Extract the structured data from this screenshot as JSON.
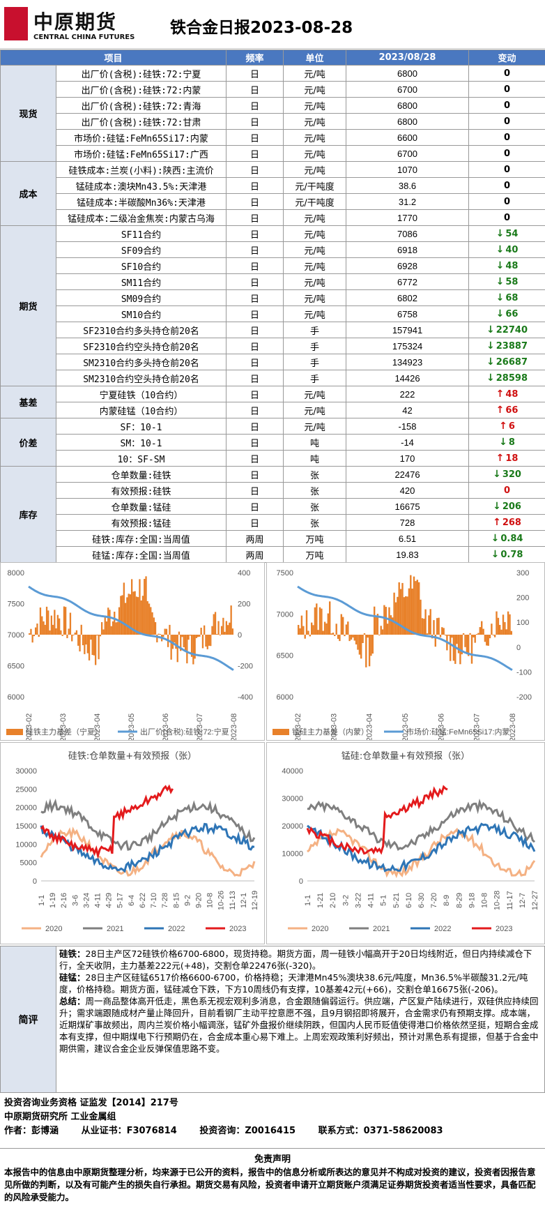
{
  "header": {
    "logo_cn": "中原期货",
    "logo_en": "CENTRAL CHINA FUTURES",
    "title": "铁合金日报2023-08-28"
  },
  "table": {
    "columns": [
      "项目",
      "频率",
      "单位",
      "2023/08/28",
      "变动"
    ],
    "sections": [
      {
        "category": "现货",
        "rows": [
          {
            "item": "出厂价(含税):硅铁:72:宁夏",
            "freq": "日",
            "unit": "元/吨",
            "value": "6800",
            "change": "0",
            "dir": ""
          },
          {
            "item": "出厂价(含税):硅铁:72:内蒙",
            "freq": "日",
            "unit": "元/吨",
            "value": "6700",
            "change": "0",
            "dir": ""
          },
          {
            "item": "出厂价(含税):硅铁:72:青海",
            "freq": "日",
            "unit": "元/吨",
            "value": "6800",
            "change": "0",
            "dir": ""
          },
          {
            "item": "出厂价(含税):硅铁:72:甘肃",
            "freq": "日",
            "unit": "元/吨",
            "value": "6800",
            "change": "0",
            "dir": ""
          },
          {
            "item": "市场价:硅锰:FeMn65Si17:内蒙",
            "freq": "日",
            "unit": "元/吨",
            "value": "6600",
            "change": "0",
            "dir": ""
          },
          {
            "item": "市场价:硅锰:FeMn65Si17:广西",
            "freq": "日",
            "unit": "元/吨",
            "value": "6700",
            "change": "0",
            "dir": ""
          }
        ]
      },
      {
        "category": "成本",
        "rows": [
          {
            "item": "硅铁成本:兰炭(小料):陕西:主流价",
            "freq": "日",
            "unit": "元/吨",
            "value": "1070",
            "change": "0",
            "dir": ""
          },
          {
            "item": "锰硅成本:澳块Mn43.5%:天津港",
            "freq": "日",
            "unit": "元/干吨度",
            "value": "38.6",
            "change": "0",
            "dir": ""
          },
          {
            "item": "锰硅成本:半碳酸Mn36%:天津港",
            "freq": "日",
            "unit": "元/干吨度",
            "value": "31.2",
            "change": "0",
            "dir": ""
          },
          {
            "item": "锰硅成本:二级冶金焦炭:内蒙古乌海",
            "freq": "日",
            "unit": "元/吨",
            "value": "1770",
            "change": "0",
            "dir": ""
          }
        ]
      },
      {
        "category": "期货",
        "rows": [
          {
            "item": "SF11合约",
            "freq": "日",
            "unit": "元/吨",
            "value": "7086",
            "change": "54",
            "dir": "down"
          },
          {
            "item": "SF09合约",
            "freq": "日",
            "unit": "元/吨",
            "value": "6918",
            "change": "40",
            "dir": "down"
          },
          {
            "item": "SF10合约",
            "freq": "日",
            "unit": "元/吨",
            "value": "6928",
            "change": "48",
            "dir": "down"
          },
          {
            "item": "SM11合约",
            "freq": "日",
            "unit": "元/吨",
            "value": "6772",
            "change": "58",
            "dir": "down"
          },
          {
            "item": "SM09合约",
            "freq": "日",
            "unit": "元/吨",
            "value": "6802",
            "change": "68",
            "dir": "down"
          },
          {
            "item": "SM10合约",
            "freq": "日",
            "unit": "元/吨",
            "value": "6758",
            "change": "66",
            "dir": "down"
          },
          {
            "item": "SF2310合约多头持仓前20名",
            "freq": "日",
            "unit": "手",
            "value": "157941",
            "change": "22740",
            "dir": "down"
          },
          {
            "item": "SF2310合约空头持仓前20名",
            "freq": "日",
            "unit": "手",
            "value": "175324",
            "change": "23887",
            "dir": "down"
          },
          {
            "item": "SM2310合约多头持仓前20名",
            "freq": "日",
            "unit": "手",
            "value": "134923",
            "change": "26687",
            "dir": "down"
          },
          {
            "item": "SM2310合约空头持仓前20名",
            "freq": "日",
            "unit": "手",
            "value": "14426",
            "change": "28598",
            "dir": "down"
          }
        ]
      },
      {
        "category": "基差",
        "rows": [
          {
            "item": "宁夏硅铁（10合约）",
            "freq": "日",
            "unit": "元/吨",
            "value": "222",
            "change": "48",
            "dir": "up"
          },
          {
            "item": "内蒙硅锰（10合约）",
            "freq": "日",
            "unit": "元/吨",
            "value": "42",
            "change": "66",
            "dir": "up"
          }
        ]
      },
      {
        "category": "价差",
        "rows": [
          {
            "item": "SF：10-1",
            "freq": "日",
            "unit": "元/吨",
            "value": "-158",
            "change": "6",
            "dir": "up"
          },
          {
            "item": "SM：10-1",
            "freq": "日",
            "unit": "吨",
            "value": "-14",
            "change": "8",
            "dir": "down"
          },
          {
            "item": "10：SF-SM",
            "freq": "日",
            "unit": "吨",
            "value": "170",
            "change": "18",
            "dir": "up"
          }
        ]
      },
      {
        "category": "库存",
        "rows": [
          {
            "item": "仓单数量:硅铁",
            "freq": "日",
            "unit": "张",
            "value": "22476",
            "change": "320",
            "dir": "down"
          },
          {
            "item": "有效预报:硅铁",
            "freq": "日",
            "unit": "张",
            "value": "420",
            "change": "0",
            "dir": "zero-red"
          },
          {
            "item": "仓单数量:锰硅",
            "freq": "日",
            "unit": "张",
            "value": "16675",
            "change": "206",
            "dir": "down"
          },
          {
            "item": "有效预报:锰硅",
            "freq": "日",
            "unit": "张",
            "value": "728",
            "change": "268",
            "dir": "up"
          },
          {
            "item": "硅铁:库存:全国:当周值",
            "freq": "两周",
            "unit": "万吨",
            "value": "6.51",
            "change": "0.84",
            "dir": "down"
          },
          {
            "item": "硅锰:库存:全国:当周值",
            "freq": "两周",
            "unit": "万吨",
            "value": "19.83",
            "change": "0.78",
            "dir": "down"
          }
        ]
      }
    ]
  },
  "charts": {
    "top_left": {
      "left_ticks": [
        "8000",
        "7500",
        "7000",
        "6500",
        "6000"
      ],
      "right_ticks": [
        "400",
        "200",
        "0",
        "-200",
        "-400"
      ],
      "x_ticks": [
        "2023-02",
        "2023-03",
        "2023-04",
        "2023-05",
        "2023-06",
        "2023-07",
        "2023-08"
      ],
      "legend_bar": "硅铁主力基差（宁夏）",
      "legend_line": "出厂价(含税):硅铁:72:宁夏"
    },
    "top_right": {
      "left_ticks": [
        "7500",
        "7000",
        "6500",
        "6000"
      ],
      "right_ticks": [
        "300",
        "200",
        "100",
        "0",
        "-100",
        "-200"
      ],
      "x_ticks": [
        "2023-02",
        "2023-03",
        "2023-04",
        "2023-05",
        "2023-06",
        "2023-07",
        "2023-08"
      ],
      "legend_bar": "锰硅主力基差（内蒙）",
      "legend_line": "市场价:硅锰:FeMn65Si17:内蒙"
    },
    "bottom_left": {
      "title": "硅铁:仓单数量+有效预报（张）",
      "y_ticks": [
        "30000",
        "25000",
        "20000",
        "15000",
        "10000",
        "5000",
        "0"
      ],
      "x_ticks": [
        "1-1",
        "1-19",
        "2-16",
        "3-6",
        "3-24",
        "4-11",
        "4-29",
        "5-17",
        "6-4",
        "6-22",
        "7-10",
        "7-28",
        "8-15",
        "9-2",
        "9-20",
        "10-8",
        "10-26",
        "11-13",
        "12-1",
        "12-19"
      ],
      "legend": [
        "2020",
        "2021",
        "2022",
        "2023"
      ]
    },
    "bottom_right": {
      "title": "锰硅:仓单数量+有效预报（张）",
      "y_ticks": [
        "40000",
        "30000",
        "20000",
        "10000",
        "0"
      ],
      "x_ticks": [
        "1-1",
        "1-21",
        "2-10",
        "3-2",
        "3-22",
        "4-11",
        "5-1",
        "5-21",
        "6-10",
        "6-30",
        "7-20",
        "8-9",
        "8-29",
        "9-18",
        "10-8",
        "10-28",
        "11-17",
        "12-7",
        "12-27"
      ],
      "legend": [
        "2020",
        "2021",
        "2022",
        "2023"
      ]
    },
    "colors": {
      "bar": "#e8812a",
      "line": "#5b9bd5",
      "c2020": "#f4b183",
      "c2021": "#7f7f7f",
      "c2022": "#2e75b6",
      "c2023": "#e31a1c"
    }
  },
  "comment": {
    "label": "简评",
    "p1_head": "硅铁：",
    "p1": "28日主产区72硅铁价格6700-6800，现货持稳。期货方面，周一硅铁小幅高开于20日均线附近，但日内持续减仓下行，全天收阴，主力基差222元(+48)，交割仓单22476张(-320)。",
    "p2_head": "硅锰：",
    "p2": "28日主产区硅锰6517价格6600-6700，价格持稳；天津港Mn45%澳块38.6元/吨度，Mn36.5%半碳酸31.2元/吨度，价格持稳。期货方面，锰硅减仓下跌，下方10周线仍有支撑，10基差42元(+66)，交割仓单16675张(-206)。",
    "p3_head": "总结：",
    "p3": "周一商品整体高开低走，黑色系无视宏观利多消息，合金跟随偏弱运行。供应端，产区复产陆续进行，双硅供应持续回升；需求端跟随成材产量止降回升，目前看钢厂主动平控意愿不强，且9月钢招即将展开，合金需求仍有预期支撑。成本端，近期煤矿事故频出，周内兰炭价格小幅调涨，锰矿外盘报价继续阴跌，但国内人民币贬值使得港口价格依然坚挺，短期合金成本有支撑，但中期煤电下行预期仍在，合金成本重心易下难上。上周宏观政策利好频出，预计对黑色系有提振，但基于合金中期供需，建议合金企业反弹保值思路不变。"
  },
  "footer": {
    "line1": "投资咨询业务资格    证监发【2014】217号",
    "line2": "中原期货研究所    工业金属组",
    "author_label": "作者：",
    "author": "彭博涵",
    "cert_label": "从业证书：",
    "cert": "F3076814",
    "consult_label": "投资咨询：",
    "consult": "Z0016415",
    "contact_label": "联系方式：",
    "contact": "0371-58620083"
  },
  "disclaimer": {
    "title": "免责声明",
    "body": "本报告中的信息由中原期货整理分析，均来源于已公开的资料，报告中的信息分析或所表达的意见并不构成对投资的建议，投资者因报告意见所做的判断，以及有可能产生的损失自行承担。期货交易有风险，投资者申请开立期货账户须满足证券期货投资者适当性要求，具备匹配的风险承受能力。"
  }
}
